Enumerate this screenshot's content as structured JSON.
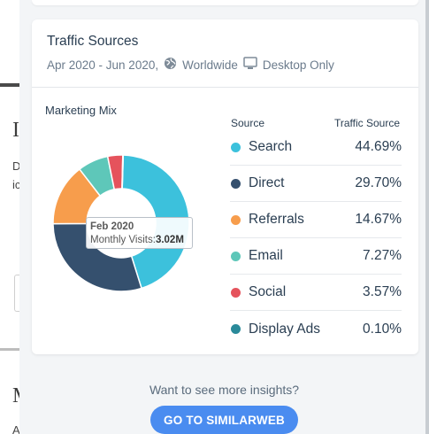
{
  "background_page": {
    "heading_char_1": "I",
    "text_line_1": "D",
    "text_line_2": "ic",
    "heading_char_2": "M",
    "text_line_3": "A"
  },
  "card": {
    "title": "Traffic Sources",
    "date_range": "Apr 2020 - Jun 2020,",
    "region": "Worldwide",
    "device": "Desktop Only",
    "region_icon": "globe-icon",
    "device_icon": "desktop-icon"
  },
  "marketing_mix": {
    "label": "Marketing Mix",
    "col_source": "Source",
    "col_traffic": "Traffic Source",
    "tooltip": {
      "title": "Feb 2020",
      "label": "Monthly Visits:",
      "value": "3.02M"
    }
  },
  "chart_data": {
    "type": "pie",
    "variant": "donut",
    "categories": [
      "Search",
      "Direct",
      "Referrals",
      "Email",
      "Social",
      "Display Ads"
    ],
    "values": [
      44.69,
      29.7,
      14.67,
      7.27,
      3.57,
      0.1
    ],
    "colors": [
      "#3cc1dc",
      "#35506e",
      "#f79d4c",
      "#5ec7b9",
      "#e5535c",
      "#2a8a9a"
    ]
  },
  "sources": [
    {
      "label": "Search",
      "value": "44.69%",
      "color": "#3cc1dc"
    },
    {
      "label": "Direct",
      "value": "29.70%",
      "color": "#35506e"
    },
    {
      "label": "Referrals",
      "value": "14.67%",
      "color": "#f79d4c"
    },
    {
      "label": "Email",
      "value": "7.27%",
      "color": "#5ec7b9"
    },
    {
      "label": "Social",
      "value": "3.57%",
      "color": "#e5535c"
    },
    {
      "label": "Display Ads",
      "value": "0.10%",
      "color": "#2a8a9a"
    }
  ],
  "footer": {
    "prompt": "Want to see more insights?",
    "cta_label": "GO TO SIMILARWEB"
  }
}
